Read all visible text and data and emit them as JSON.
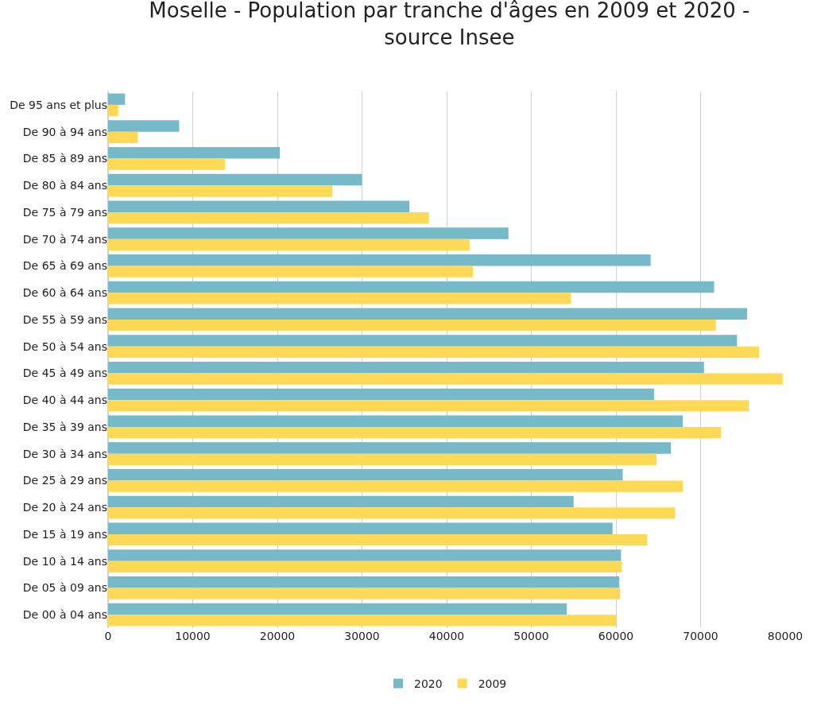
{
  "chart_data": {
    "type": "bar",
    "orientation": "horizontal",
    "title": "Moselle - Population par tranche d'âges en 2009 et 2020 -\nsource Insee",
    "categories": [
      "De 95 ans et plus",
      "De 90 à 94 ans",
      "De 85 à 89 ans",
      "De 80 à 84 ans",
      "De 75 à 79 ans",
      "De 70 à 74 ans",
      "De 65 à 69 ans",
      "De 60 à 64 ans",
      "De 55 à 59 ans",
      "De 50 à 54 ans",
      "De 45 à 49 ans",
      "De 40 à 44 ans",
      "De 35 à 39 ans",
      "De 30 à 34 ans",
      "De 25 à 29 ans",
      "De 20 à 24 ans",
      "De 15 à 19 ans",
      "De 10 à 14 ans",
      "De 05 à 09 ans",
      "De 00 à 04 ans"
    ],
    "series": [
      {
        "name": "2020",
        "color": "#76b9c8",
        "values": [
          2000,
          8400,
          20300,
          30000,
          35600,
          47300,
          64100,
          71600,
          75500,
          74300,
          70400,
          64500,
          67900,
          66500,
          60800,
          55000,
          59600,
          60600,
          60400,
          54200
        ]
      },
      {
        "name": "2009",
        "color": "#fed955",
        "values": [
          1200,
          3500,
          13800,
          26500,
          37900,
          42700,
          43100,
          54700,
          71800,
          76900,
          79700,
          75700,
          72400,
          64800,
          67900,
          67000,
          63700,
          60700,
          60500,
          60000
        ]
      }
    ],
    "xlim": [
      0,
      80000
    ],
    "xticks": [
      0,
      10000,
      20000,
      30000,
      40000,
      50000,
      60000,
      70000,
      80000
    ],
    "grid": "x",
    "legend": "bottom"
  }
}
